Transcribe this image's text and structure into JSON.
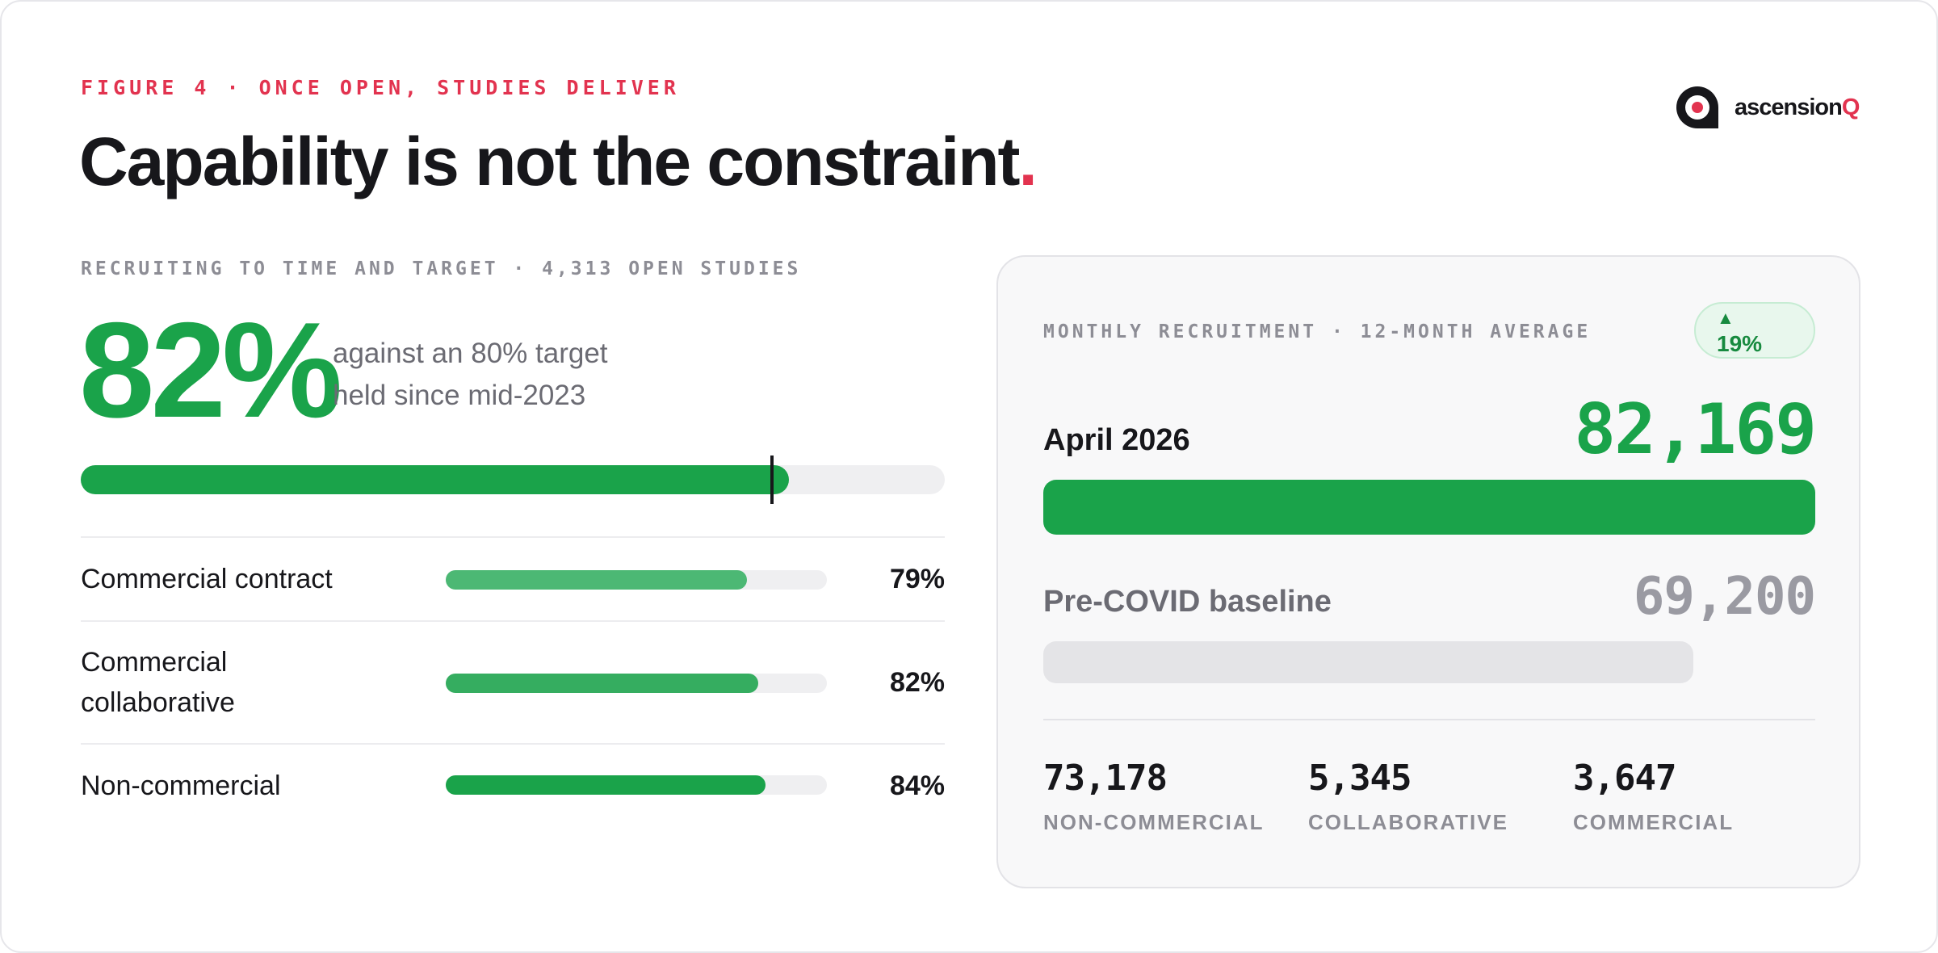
{
  "header": {
    "figure_label": "FIGURE 4 · ONCE OPEN, STUDIES DELIVER",
    "title": "Capability is not the constraint",
    "title_dot": "."
  },
  "logo": {
    "mark": "ascensionQ-logo-mark",
    "text_main": "ascension",
    "text_accent": "Q",
    "accent_color": "#e2334f"
  },
  "left": {
    "kicker": "RECRUITING TO TIME AND TARGET · 4,313 OPEN STUDIES",
    "big_value": "82%",
    "note_line1": "against an 80% target",
    "note_line2": "held since mid-2023",
    "progress": 0.82,
    "target": 0.8,
    "rows": [
      {
        "label": "Commercial contract",
        "value": "79%",
        "fraction": 0.79,
        "color": "#4cb874"
      },
      {
        "label": "Commercial collaborative",
        "value": "82%",
        "fraction": 0.82,
        "color": "#35ad60"
      },
      {
        "label": "Non-commercial",
        "value": "84%",
        "fraction": 0.84,
        "color": "#1aa34a"
      }
    ]
  },
  "panel": {
    "kicker": "MONTHLY RECRUITMENT · 12-MONTH AVERAGE",
    "badge": {
      "arrow": "▲",
      "value": "19%"
    },
    "current": {
      "label": "April 2026",
      "value": "82,169",
      "fraction": 1.0
    },
    "baseline": {
      "label": "Pre-COVID baseline",
      "value": "69,200",
      "fraction": 0.842
    },
    "stats": [
      {
        "value": "73,178",
        "label": "NON-COMMERCIAL"
      },
      {
        "value": "5,345",
        "label": "COLLABORATIVE"
      },
      {
        "value": "3,647",
        "label": "COMMERCIAL"
      }
    ]
  },
  "colors": {
    "green": "#1aa34a",
    "red_accent": "#e2334f",
    "muted": "#8d8d95"
  }
}
